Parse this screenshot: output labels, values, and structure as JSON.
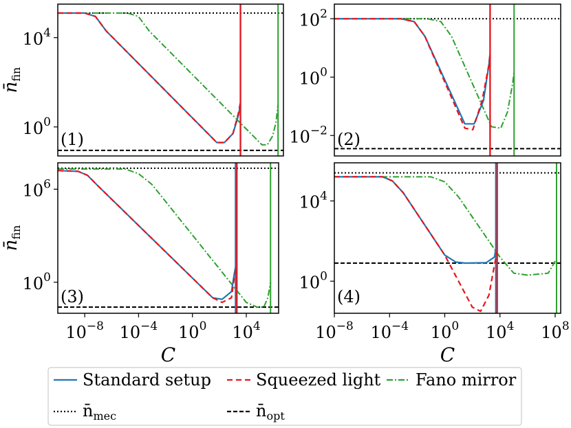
{
  "chart_data": [
    {
      "panel_label": "(1)",
      "type": "line",
      "xscale": "log",
      "yscale": "log",
      "xlim_log10": [
        -10,
        11
      ],
      "ylim_log10": [
        -1.3,
        5.5
      ],
      "yticks": [
        {
          "mant": "10",
          "exp": "4",
          "log": 4
        },
        {
          "mant": "10",
          "exp": "0",
          "log": 0
        }
      ],
      "ylabel": {
        "base": "n̄",
        "sub": "fin"
      },
      "xlabel": "",
      "show_xticks": false,
      "hlines": {
        "n_mec_log": 5.1,
        "n_opt_log": -1.05
      },
      "series": [
        {
          "name": "Standard setup",
          "points": [
            [
              -10,
              5.1
            ],
            [
              -7.5,
              5.1
            ],
            [
              -6.5,
              4.95
            ],
            [
              -5.5,
              4.3
            ],
            [
              4.8,
              -0.7
            ],
            [
              5.5,
              -0.7
            ],
            [
              6.3,
              -0.3
            ],
            [
              6.8,
              0.5
            ],
            [
              7,
              1.0
            ]
          ],
          "vertical_log": 7.0
        },
        {
          "name": "Squeezed light",
          "points": [
            [
              -10,
              5.1
            ],
            [
              -7.5,
              5.1
            ],
            [
              -6.5,
              4.95
            ],
            [
              -5.5,
              4.3
            ],
            [
              4.8,
              -0.7
            ],
            [
              5.5,
              -0.7
            ],
            [
              6.3,
              -0.3
            ],
            [
              6.8,
              0.6
            ],
            [
              7,
              1.1
            ]
          ],
          "vertical_log": 7.0
        },
        {
          "name": "Fano mirror",
          "points": [
            [
              -10,
              5.1
            ],
            [
              -3.5,
              5.1
            ],
            [
              -2.5,
              4.95
            ],
            [
              -1.5,
              4.3
            ],
            [
              9.0,
              -0.8
            ],
            [
              9.5,
              -0.8
            ],
            [
              10.0,
              -0.4
            ],
            [
              10.3,
              0.2
            ],
            [
              10.5,
              1.0
            ]
          ],
          "vertical_log": 10.5
        }
      ]
    },
    {
      "panel_label": "(2)",
      "type": "line",
      "xscale": "log",
      "yscale": "log",
      "xlim_log10": [
        -8,
        9
      ],
      "ylim_log10": [
        -2.7,
        2.5
      ],
      "yticks": [
        {
          "mant": "10",
          "exp": "2",
          "log": 2
        },
        {
          "mant": "10",
          "exp": "0",
          "log": 0
        },
        {
          "mant": "10",
          "exp": "−2",
          "log": -2
        }
      ],
      "ylabel": {
        "base": "",
        "sub": ""
      },
      "xlabel": "",
      "show_xticks": false,
      "hlines": {
        "n_mec_log": 2.0,
        "n_opt_log": -2.45
      },
      "series": [
        {
          "name": "Standard setup",
          "points": [
            [
              -8,
              2.0
            ],
            [
              -3,
              2.0
            ],
            [
              -2,
              1.9
            ],
            [
              -1.2,
              1.4
            ],
            [
              1.8,
              -1.6
            ],
            [
              2.5,
              -1.6
            ],
            [
              3.2,
              -0.8
            ],
            [
              3.6,
              0.4
            ],
            [
              3.7,
              0.8
            ]
          ],
          "vertical_log": 3.7
        },
        {
          "name": "Squeezed light",
          "points": [
            [
              -8,
              2.0
            ],
            [
              -3,
              2.0
            ],
            [
              -2,
              1.9
            ],
            [
              -1.2,
              1.4
            ],
            [
              1.8,
              -1.75
            ],
            [
              2.4,
              -1.8
            ],
            [
              3.1,
              -0.8
            ],
            [
              3.6,
              0.4
            ],
            [
              3.7,
              0.8
            ]
          ],
          "vertical_log": 3.7
        },
        {
          "name": "Fano mirror",
          "points": [
            [
              -8,
              2.0
            ],
            [
              -1,
              2.0
            ],
            [
              0,
              1.9
            ],
            [
              0.8,
              1.4
            ],
            [
              3.8,
              -1.7
            ],
            [
              4.5,
              -1.75
            ],
            [
              5.0,
              -1.2
            ],
            [
              5.4,
              -0.2
            ],
            [
              5.5,
              0.2
            ]
          ],
          "vertical_log": 5.5
        }
      ]
    },
    {
      "panel_label": "(3)",
      "type": "line",
      "xscale": "log",
      "yscale": "log",
      "xlim_log10": [
        -10,
        6.4
      ],
      "ylim_log10": [
        -2,
        7.7
      ],
      "yticks": [
        {
          "mant": "10",
          "exp": "6",
          "log": 6
        },
        {
          "mant": "10",
          "exp": "0",
          "log": 0
        }
      ],
      "ylabel": {
        "base": "n̄",
        "sub": "fin"
      },
      "xlabel": "C",
      "show_xticks": true,
      "xticks": [
        {
          "mant": "10",
          "exp": "−8",
          "log": -8
        },
        {
          "mant": "10",
          "exp": "−4",
          "log": -4
        },
        {
          "mant": "10",
          "exp": "0",
          "log": 0
        },
        {
          "mant": "10",
          "exp": "4",
          "log": 4
        }
      ],
      "hlines": {
        "n_mec_log": 7.35,
        "n_opt_log": -1.6
      },
      "series": [
        {
          "name": "Standard setup",
          "points": [
            [
              -10,
              7.2
            ],
            [
              -8.5,
              7.15
            ],
            [
              -7.8,
              6.9
            ],
            [
              -7,
              6.2
            ],
            [
              1.5,
              -1.0
            ],
            [
              2.2,
              -1.1
            ],
            [
              2.9,
              -0.6
            ],
            [
              3.1,
              0.5
            ],
            [
              3.2,
              1.0
            ]
          ],
          "vertical_log": 3.2
        },
        {
          "name": "Squeezed light",
          "points": [
            [
              -10,
              7.2
            ],
            [
              -8.5,
              7.15
            ],
            [
              -7.8,
              6.9
            ],
            [
              -7,
              6.2
            ],
            [
              1.5,
              -1.0
            ],
            [
              2.2,
              -1.3
            ],
            [
              2.9,
              -1.0
            ],
            [
              3.1,
              0.3
            ],
            [
              3.3,
              1.0
            ]
          ],
          "vertical_log": 3.3
        },
        {
          "name": "Fano mirror",
          "points": [
            [
              -10,
              7.3
            ],
            [
              -5,
              7.3
            ],
            [
              -4,
              7.0
            ],
            [
              -3,
              6.3
            ],
            [
              4.0,
              -1.3
            ],
            [
              4.8,
              -1.6
            ],
            [
              5.3,
              -1.6
            ],
            [
              5.6,
              -1.0
            ],
            [
              5.8,
              0.0
            ]
          ],
          "vertical_log": 5.8
        }
      ]
    },
    {
      "panel_label": "(4)",
      "type": "line",
      "xscale": "log",
      "yscale": "log",
      "xlim_log10": [
        -8,
        8.4
      ],
      "ylim_log10": [
        -1.6,
        5.9
      ],
      "yticks": [
        {
          "mant": "10",
          "exp": "4",
          "log": 4
        },
        {
          "mant": "10",
          "exp": "0",
          "log": 0
        }
      ],
      "ylabel": {
        "base": "",
        "sub": ""
      },
      "xlabel": "C",
      "show_xticks": true,
      "xticks": [
        {
          "mant": "10",
          "exp": "−8",
          "log": -8
        },
        {
          "mant": "10",
          "exp": "−4",
          "log": -4
        },
        {
          "mant": "10",
          "exp": "0",
          "log": 0
        },
        {
          "mant": "10",
          "exp": "4",
          "log": 4
        },
        {
          "mant": "10",
          "exp": "8",
          "log": 8
        }
      ],
      "hlines": {
        "n_mec_log": 5.4,
        "n_opt_log": 0.9
      },
      "series": [
        {
          "name": "Standard setup",
          "points": [
            [
              -8,
              5.2
            ],
            [
              -4.5,
              5.2
            ],
            [
              -3.8,
              5.0
            ],
            [
              -3.0,
              4.4
            ],
            [
              0,
              1.3
            ],
            [
              0.8,
              0.95
            ],
            [
              1.5,
              0.9
            ],
            [
              3.0,
              0.92
            ],
            [
              3.6,
              1.2
            ],
            [
              3.7,
              1.6
            ]
          ],
          "vertical_log": 3.7
        },
        {
          "name": "Squeezed light",
          "points": [
            [
              -8,
              5.2
            ],
            [
              -4.5,
              5.2
            ],
            [
              -3.8,
              5.0
            ],
            [
              -3.0,
              4.4
            ],
            [
              0,
              1.3
            ],
            [
              1.0,
              0.0
            ],
            [
              2.0,
              -1.3
            ],
            [
              2.6,
              -1.5
            ],
            [
              3.2,
              -0.7
            ],
            [
              3.6,
              0.8
            ],
            [
              3.8,
              1.5
            ]
          ],
          "vertical_log": 3.8
        },
        {
          "name": "Fano mirror",
          "points": [
            [
              -8,
              5.2
            ],
            [
              -1.0,
              5.2
            ],
            [
              0,
              4.95
            ],
            [
              1.0,
              4.2
            ],
            [
              4.0,
              1.2
            ],
            [
              5.0,
              0.4
            ],
            [
              6.0,
              0.3
            ],
            [
              7.5,
              0.4
            ],
            [
              8.0,
              1.0
            ]
          ],
          "vertical_log": 8.1
        }
      ]
    }
  ],
  "legend": {
    "items": [
      {
        "label": "Standard setup",
        "style": "solid",
        "color": "#1f77b4"
      },
      {
        "label": "Squeezed light",
        "style": "dashed",
        "color": "#e8141b"
      },
      {
        "label": "Fano mirror",
        "style": "dashdot",
        "color": "#2ca02c"
      },
      {
        "label": "n̄",
        "sub": "mec",
        "style": "dotted",
        "color": "#000000"
      },
      {
        "label": "n̄",
        "sub": "opt",
        "style": "dashed",
        "color": "#000000"
      }
    ]
  },
  "colors": {
    "standard": "#1f77b4",
    "squeezed": "#e8141b",
    "fano": "#2ca02c",
    "ref": "#000000"
  }
}
